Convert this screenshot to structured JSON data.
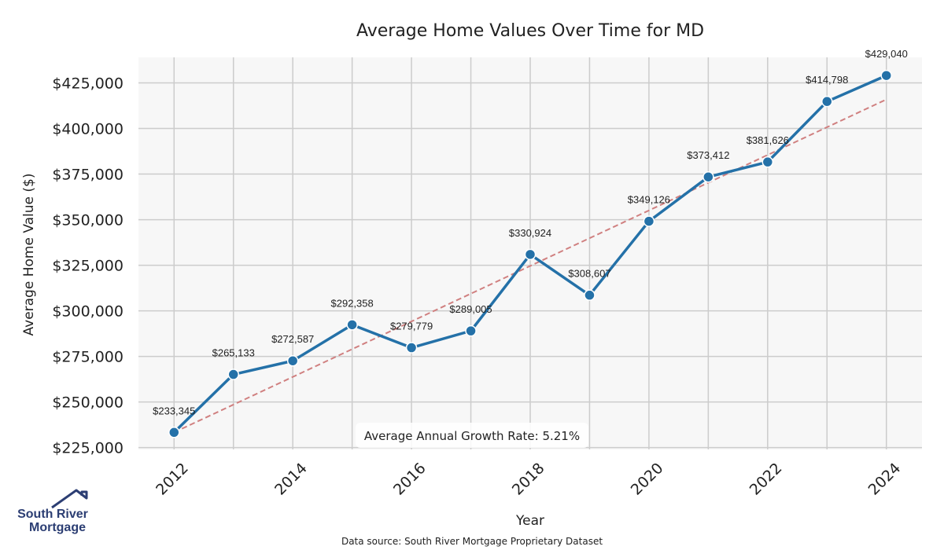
{
  "chart_data": {
    "type": "line",
    "title": "Average Home Values Over Time for MD",
    "xlabel": "Year",
    "ylabel": "Average Home Value ($)",
    "x": [
      2012,
      2013,
      2014,
      2015,
      2016,
      2017,
      2018,
      2019,
      2020,
      2021,
      2022,
      2023,
      2024
    ],
    "series": [
      {
        "values": [
          233345,
          265133,
          272587,
          292358,
          279779,
          289005,
          330924,
          308607,
          349126,
          373412,
          381626,
          414798,
          429040
        ],
        "data_labels": [
          "$233,345",
          "$265,133",
          "$272,587",
          "$292,358",
          "$279,779",
          "$289,005",
          "$330,924",
          "$308,607",
          "$349,126",
          "$373,412",
          "$381,626",
          "$414,798",
          "$429,040"
        ],
        "color": "#2471a8",
        "style": "solid",
        "markers": true
      },
      {
        "values": [
          233345,
          415912
        ],
        "x": [
          2012,
          2024
        ],
        "color": "#d08080",
        "style": "dashed"
      }
    ],
    "xticks": [
      2012,
      2014,
      2016,
      2018,
      2020,
      2022,
      2024
    ],
    "xtick_labels": [
      "2012",
      "2014",
      "2016",
      "2018",
      "2020",
      "2022",
      "2024"
    ],
    "yticks": [
      225000,
      250000,
      275000,
      300000,
      325000,
      350000,
      375000,
      400000,
      425000
    ],
    "ytick_labels": [
      "$225,000",
      "$250,000",
      "$275,000",
      "$300,000",
      "$325,000",
      "$350,000",
      "$375,000",
      "$400,000",
      "$425,000"
    ],
    "xlim": [
      2011.4,
      2024.6
    ],
    "ylim": [
      224000,
      439000
    ],
    "grid": true,
    "annotation": "Average Annual Growth Rate: 5.21%",
    "source": "Data source: South River Mortgage Proprietary Dataset",
    "background": "#f7f7f7",
    "grid_color": "#cccccc"
  },
  "logo": {
    "line1": "South River",
    "line2": "Mortgage",
    "color": "#2c3e73"
  }
}
